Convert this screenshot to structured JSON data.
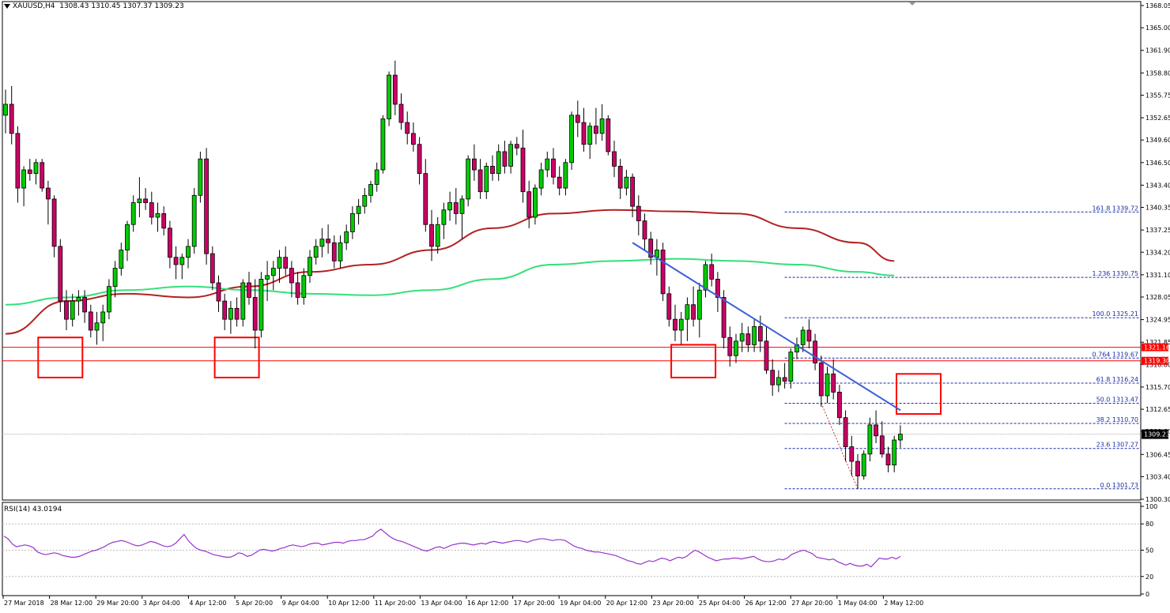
{
  "header": {
    "symbol": "XAUUSD,H4",
    "ohlc": "1308.43 1310.45 1307.37 1309.23"
  },
  "rsi": {
    "title": "RSI(14) 43.0194",
    "levels": [
      "100",
      "80",
      "50",
      "20",
      "0"
    ],
    "values": [
      66,
      63,
      57,
      54,
      55,
      56,
      55,
      53,
      48,
      46,
      45,
      46,
      47,
      46,
      44,
      43,
      42,
      42,
      43,
      45,
      47,
      49,
      50,
      52,
      54,
      57,
      59,
      60,
      61,
      60,
      58,
      56,
      55,
      56,
      58,
      60,
      59,
      57,
      55,
      54,
      55,
      58,
      63,
      68,
      61,
      56,
      52,
      50,
      49,
      47,
      45,
      44,
      43,
      42,
      42,
      44,
      47,
      46,
      43,
      44,
      47,
      50,
      51,
      50,
      49,
      50,
      52,
      53,
      55,
      56,
      55,
      54,
      55,
      57,
      58,
      58,
      56,
      57,
      58,
      59,
      59,
      58,
      60,
      61,
      61,
      62,
      62,
      64,
      66,
      71,
      74,
      70,
      66,
      63,
      61,
      60,
      58,
      56,
      54,
      52,
      50,
      49,
      51,
      53,
      54,
      52,
      54,
      56,
      57,
      58,
      58,
      57,
      56,
      57,
      58,
      57,
      59,
      60,
      59,
      58,
      59,
      60,
      61,
      61,
      60,
      59,
      61,
      62,
      63,
      63,
      62,
      61,
      62,
      62,
      61,
      58,
      55,
      53,
      52,
      50,
      49,
      48,
      48,
      47,
      46,
      45,
      44,
      42,
      40,
      38,
      37,
      35,
      34,
      36,
      38,
      37,
      39,
      41,
      40,
      38,
      40,
      42,
      41,
      43,
      47,
      50,
      48,
      45,
      42,
      40,
      38,
      39,
      40,
      40,
      41,
      41,
      40,
      41,
      42,
      43,
      40,
      38,
      37,
      37,
      38,
      40,
      39,
      41,
      45,
      47,
      49,
      50,
      48,
      46,
      42,
      41,
      40,
      39,
      40,
      37,
      35,
      33,
      35,
      33,
      32,
      32,
      34,
      31,
      36,
      41,
      40,
      40,
      42,
      40,
      43
    ],
    "current": "43.0194"
  },
  "price_axis": {
    "labels": [
      "1368.05",
      "1365.00",
      "1361.90",
      "1358.80",
      "1355.75",
      "1352.65",
      "1349.60",
      "1346.50",
      "1343.40",
      "1340.35",
      "1337.25",
      "1334.20",
      "1331.10",
      "1328.05",
      "1324.95",
      "1321.85",
      "1318.80",
      "1315.70",
      "1312.65",
      "1309.60",
      "1306.45",
      "1303.40",
      "1300.30"
    ],
    "current_price": "1309.23",
    "resistance_upper": "1321.16",
    "resistance_lower": "1319.30"
  },
  "fibonacci": {
    "levels": [
      {
        "label": "161.8 1339.72",
        "price": 1339.72
      },
      {
        "label": "1.236 1330.75",
        "price": 1330.75
      },
      {
        "label": "100.0 1325.21",
        "price": 1325.21
      },
      {
        "label": "0.764 1319.67",
        "price": 1319.67
      },
      {
        "label": "61.8 1316.24",
        "price": 1316.24
      },
      {
        "label": "50.0 1313.47",
        "price": 1313.47
      },
      {
        "label": "38.2 1310.70",
        "price": 1310.7
      },
      {
        "label": "23.6 1307.27",
        "price": 1307.27
      },
      {
        "label": "0.0 1301.73",
        "price": 1301.73
      }
    ]
  },
  "time_axis": {
    "labels": [
      "27 Mar 2018",
      "28 Mar 12:00",
      "29 Mar 20:00",
      "3 Apr 04:00",
      "4 Apr 12:00",
      "5 Apr 20:00",
      "9 Apr 04:00",
      "10 Apr 12:00",
      "11 Apr 20:00",
      "13 Apr 04:00",
      "16 Apr 12:00",
      "17 Apr 20:00",
      "19 Apr 04:00",
      "20 Apr 12:00",
      "23 Apr 20:00",
      "25 Apr 04:00",
      "26 Apr 12:00",
      "27 Apr 20:00",
      "1 May 04:00",
      "2 May 12:00"
    ]
  },
  "colors": {
    "bull": "#00cc00",
    "bear": "#cc0066",
    "ma_slow": "#b22222",
    "ma_fast": "#33e07a",
    "trendline": "#3a5fd8",
    "fib": "#1a2ea8",
    "resistance": "#ff0000"
  },
  "chart_data": {
    "type": "candlestick",
    "symbol": "XAUUSD",
    "timeframe": "H4",
    "ylim": [
      1300.3,
      1368.05
    ],
    "candles_ohlc": [
      [
        1353.0,
        1356.5,
        1350.5,
        1354.5
      ],
      [
        1354.5,
        1357.0,
        1349.0,
        1350.5
      ],
      [
        1350.5,
        1351.5,
        1341.0,
        1343.0
      ],
      [
        1343.0,
        1346.0,
        1340.5,
        1345.5
      ],
      [
        1345.5,
        1347.0,
        1344.0,
        1345.0
      ],
      [
        1345.0,
        1347.0,
        1343.5,
        1346.5
      ],
      [
        1346.5,
        1347.0,
        1342.5,
        1343.0
      ],
      [
        1343.0,
        1344.0,
        1338.0,
        1341.5
      ],
      [
        1341.5,
        1342.0,
        1333.5,
        1335.0
      ],
      [
        1335.0,
        1336.0,
        1326.0,
        1327.5
      ],
      [
        1327.5,
        1329.0,
        1323.5,
        1325.0
      ],
      [
        1325.0,
        1328.5,
        1324.0,
        1327.5
      ],
      [
        1327.5,
        1329.0,
        1325.5,
        1328.0
      ],
      [
        1328.0,
        1329.0,
        1324.5,
        1326.0
      ],
      [
        1326.0,
        1327.0,
        1322.5,
        1323.5
      ],
      [
        1323.5,
        1326.0,
        1321.5,
        1324.5
      ],
      [
        1324.5,
        1327.0,
        1322.0,
        1326.0
      ],
      [
        1326.0,
        1330.5,
        1325.0,
        1329.5
      ],
      [
        1329.5,
        1333.0,
        1328.0,
        1332.0
      ],
      [
        1332.0,
        1335.5,
        1331.0,
        1334.5
      ],
      [
        1334.5,
        1338.5,
        1333.0,
        1338.0
      ],
      [
        1338.0,
        1342.0,
        1337.0,
        1341.0
      ],
      [
        1341.0,
        1344.5,
        1339.0,
        1341.5
      ],
      [
        1341.5,
        1343.0,
        1340.0,
        1341.0
      ],
      [
        1341.0,
        1342.5,
        1338.0,
        1339.0
      ],
      [
        1339.0,
        1341.0,
        1337.0,
        1339.5
      ],
      [
        1339.5,
        1340.5,
        1336.5,
        1337.5
      ],
      [
        1337.5,
        1338.5,
        1332.0,
        1333.5
      ],
      [
        1333.5,
        1335.0,
        1330.5,
        1332.5
      ],
      [
        1332.5,
        1334.0,
        1330.5,
        1333.5
      ],
      [
        1333.5,
        1336.0,
        1332.0,
        1335.0
      ],
      [
        1335.0,
        1343.0,
        1334.0,
        1342.0
      ],
      [
        1342.0,
        1348.0,
        1341.0,
        1347.0
      ],
      [
        1347.0,
        1348.5,
        1332.5,
        1334.0
      ],
      [
        1334.0,
        1335.0,
        1329.0,
        1330.0
      ],
      [
        1330.0,
        1331.0,
        1326.0,
        1327.5
      ],
      [
        1327.5,
        1328.5,
        1323.5,
        1325.0
      ],
      [
        1325.0,
        1327.5,
        1323.0,
        1326.5
      ],
      [
        1326.5,
        1328.0,
        1324.0,
        1325.0
      ],
      [
        1325.0,
        1330.5,
        1324.0,
        1330.0
      ],
      [
        1330.0,
        1331.5,
        1327.0,
        1328.0
      ],
      [
        1328.0,
        1330.5,
        1321.0,
        1323.5
      ],
      [
        1323.5,
        1331.5,
        1322.5,
        1330.5
      ],
      [
        1330.5,
        1333.0,
        1327.5,
        1331.0
      ],
      [
        1331.0,
        1333.0,
        1329.0,
        1332.0
      ],
      [
        1332.0,
        1334.5,
        1330.0,
        1333.5
      ],
      [
        1333.5,
        1335.0,
        1331.0,
        1332.0
      ],
      [
        1332.0,
        1333.0,
        1328.0,
        1330.0
      ],
      [
        1330.0,
        1331.5,
        1327.0,
        1328.0
      ],
      [
        1328.0,
        1332.0,
        1327.0,
        1331.0
      ],
      [
        1331.0,
        1334.5,
        1330.0,
        1333.5
      ],
      [
        1333.5,
        1336.0,
        1332.5,
        1335.0
      ],
      [
        1335.0,
        1337.5,
        1333.5,
        1336.0
      ],
      [
        1336.0,
        1338.0,
        1334.0,
        1335.5
      ],
      [
        1335.5,
        1336.5,
        1332.0,
        1333.0
      ],
      [
        1333.0,
        1336.5,
        1332.0,
        1335.5
      ],
      [
        1335.5,
        1338.0,
        1334.5,
        1337.0
      ],
      [
        1337.0,
        1340.5,
        1336.0,
        1339.5
      ],
      [
        1339.5,
        1341.5,
        1338.0,
        1340.5
      ],
      [
        1340.5,
        1343.0,
        1339.5,
        1342.0
      ],
      [
        1342.0,
        1344.0,
        1341.0,
        1343.5
      ],
      [
        1343.5,
        1346.5,
        1342.5,
        1345.5
      ],
      [
        1345.5,
        1353.0,
        1345.0,
        1352.5
      ],
      [
        1352.5,
        1359.0,
        1351.5,
        1358.5
      ],
      [
        1358.5,
        1360.5,
        1353.0,
        1354.5
      ],
      [
        1354.5,
        1356.0,
        1351.0,
        1352.0
      ],
      [
        1352.0,
        1353.5,
        1349.0,
        1350.5
      ],
      [
        1350.5,
        1352.0,
        1348.0,
        1349.0
      ],
      [
        1349.0,
        1350.0,
        1343.5,
        1345.0
      ],
      [
        1345.0,
        1347.0,
        1337.0,
        1338.0
      ],
      [
        1338.0,
        1340.0,
        1333.0,
        1335.0
      ],
      [
        1335.0,
        1339.0,
        1334.0,
        1338.0
      ],
      [
        1338.0,
        1341.0,
        1336.0,
        1340.0
      ],
      [
        1340.0,
        1342.5,
        1338.5,
        1341.0
      ],
      [
        1341.0,
        1343.0,
        1338.0,
        1339.5
      ],
      [
        1339.5,
        1342.0,
        1336.0,
        1341.5
      ],
      [
        1341.5,
        1347.5,
        1340.5,
        1347.0
      ],
      [
        1347.0,
        1349.0,
        1344.0,
        1345.5
      ],
      [
        1345.5,
        1347.0,
        1341.5,
        1342.5
      ],
      [
        1342.5,
        1346.5,
        1341.5,
        1346.0
      ],
      [
        1346.0,
        1347.5,
        1344.0,
        1345.0
      ],
      [
        1345.0,
        1349.0,
        1344.0,
        1348.0
      ],
      [
        1348.0,
        1349.5,
        1345.0,
        1346.0
      ],
      [
        1346.0,
        1349.5,
        1345.0,
        1349.0
      ],
      [
        1349.0,
        1350.0,
        1347.5,
        1348.5
      ],
      [
        1348.5,
        1351.0,
        1341.0,
        1342.5
      ],
      [
        1342.5,
        1344.0,
        1337.5,
        1339.0
      ],
      [
        1339.0,
        1343.5,
        1338.0,
        1343.0
      ],
      [
        1343.0,
        1346.5,
        1342.0,
        1345.5
      ],
      [
        1345.5,
        1348.0,
        1344.5,
        1347.0
      ],
      [
        1347.0,
        1348.5,
        1343.5,
        1344.5
      ],
      [
        1344.5,
        1346.0,
        1342.0,
        1343.0
      ],
      [
        1343.0,
        1347.0,
        1342.0,
        1346.5
      ],
      [
        1346.5,
        1353.5,
        1345.5,
        1353.0
      ],
      [
        1353.0,
        1355.0,
        1350.0,
        1352.0
      ],
      [
        1352.0,
        1354.0,
        1348.0,
        1349.0
      ],
      [
        1349.0,
        1352.0,
        1347.0,
        1351.5
      ],
      [
        1351.5,
        1354.0,
        1349.0,
        1350.5
      ],
      [
        1350.5,
        1354.5,
        1349.5,
        1352.5
      ],
      [
        1352.5,
        1353.0,
        1347.5,
        1348.0
      ],
      [
        1348.0,
        1349.5,
        1344.5,
        1346.0
      ],
      [
        1346.0,
        1347.0,
        1341.5,
        1343.0
      ],
      [
        1343.0,
        1345.5,
        1342.0,
        1344.5
      ],
      [
        1344.5,
        1345.0,
        1339.0,
        1340.5
      ],
      [
        1340.5,
        1342.0,
        1336.5,
        1338.5
      ],
      [
        1338.5,
        1339.5,
        1334.5,
        1336.0
      ],
      [
        1336.0,
        1337.0,
        1332.5,
        1333.5
      ],
      [
        1333.5,
        1336.0,
        1331.0,
        1334.5
      ],
      [
        1334.5,
        1335.5,
        1327.5,
        1328.5
      ],
      [
        1328.5,
        1329.5,
        1324.0,
        1325.0
      ],
      [
        1325.0,
        1327.0,
        1322.0,
        1323.5
      ],
      [
        1323.5,
        1326.0,
        1321.5,
        1325.0
      ],
      [
        1325.0,
        1328.0,
        1322.0,
        1327.0
      ],
      [
        1327.0,
        1329.5,
        1324.0,
        1325.0
      ],
      [
        1325.0,
        1330.0,
        1322.5,
        1329.0
      ],
      [
        1329.0,
        1333.0,
        1328.0,
        1332.5
      ],
      [
        1332.5,
        1334.0,
        1329.5,
        1330.5
      ],
      [
        1330.5,
        1331.5,
        1326.0,
        1328.0
      ],
      [
        1328.0,
        1329.0,
        1321.0,
        1322.5
      ],
      [
        1322.5,
        1324.0,
        1318.5,
        1320.0
      ],
      [
        1320.0,
        1323.0,
        1319.0,
        1322.0
      ],
      [
        1322.0,
        1324.5,
        1320.5,
        1323.0
      ],
      [
        1323.0,
        1324.0,
        1320.5,
        1321.5
      ],
      [
        1321.5,
        1325.0,
        1320.5,
        1324.0
      ],
      [
        1324.0,
        1325.5,
        1320.5,
        1322.0
      ],
      [
        1322.0,
        1324.0,
        1317.5,
        1318.0
      ],
      [
        1318.0,
        1319.5,
        1314.5,
        1316.0
      ],
      [
        1316.0,
        1318.0,
        1315.0,
        1317.0
      ],
      [
        1317.0,
        1319.0,
        1315.5,
        1316.5
      ],
      [
        1316.5,
        1321.0,
        1315.5,
        1320.5
      ],
      [
        1320.5,
        1322.5,
        1319.5,
        1321.5
      ],
      [
        1321.5,
        1324.0,
        1320.5,
        1323.5
      ],
      [
        1323.5,
        1325.0,
        1321.0,
        1322.0
      ],
      [
        1322.0,
        1323.0,
        1318.0,
        1319.0
      ],
      [
        1319.0,
        1320.0,
        1313.0,
        1314.5
      ],
      [
        1314.5,
        1318.5,
        1313.5,
        1317.5
      ],
      [
        1317.5,
        1319.5,
        1314.0,
        1315.0
      ],
      [
        1315.0,
        1316.0,
        1310.5,
        1311.5
      ],
      [
        1311.5,
        1312.5,
        1305.5,
        1307.5
      ],
      [
        1307.5,
        1309.0,
        1303.5,
        1305.5
      ],
      [
        1305.5,
        1306.5,
        1301.7,
        1303.5
      ],
      [
        1303.5,
        1307.0,
        1303.0,
        1306.5
      ],
      [
        1306.5,
        1311.5,
        1305.5,
        1310.5
      ],
      [
        1310.5,
        1312.5,
        1308.0,
        1309.0
      ],
      [
        1309.0,
        1311.0,
        1306.0,
        1306.5
      ],
      [
        1306.5,
        1307.5,
        1304.0,
        1305.0
      ],
      [
        1305.0,
        1309.0,
        1304.0,
        1308.43
      ],
      [
        1308.43,
        1310.45,
        1307.37,
        1309.23
      ]
    ],
    "moving_averages": [
      {
        "name": "slow",
        "points": [
          [
            0,
            1323.0
          ],
          [
            10,
            1327.5
          ],
          [
            20,
            1328.5
          ],
          [
            30,
            1328.0
          ],
          [
            40,
            1329.5
          ],
          [
            50,
            1331.5
          ],
          [
            60,
            1332.5
          ],
          [
            70,
            1334.5
          ],
          [
            80,
            1337.5
          ],
          [
            90,
            1339.5
          ],
          [
            100,
            1340.0
          ],
          [
            110,
            1339.8
          ],
          [
            120,
            1339.5
          ],
          [
            130,
            1337.5
          ],
          [
            140,
            1335.5
          ],
          [
            146,
            1333.0
          ]
        ]
      },
      {
        "name": "fast",
        "points": [
          [
            0,
            1327.0
          ],
          [
            10,
            1328.0
          ],
          [
            20,
            1329.0
          ],
          [
            30,
            1329.5
          ],
          [
            40,
            1329.0
          ],
          [
            50,
            1328.5
          ],
          [
            60,
            1328.3
          ],
          [
            70,
            1329.0
          ],
          [
            80,
            1330.5
          ],
          [
            90,
            1332.5
          ],
          [
            100,
            1333.0
          ],
          [
            110,
            1333.3
          ],
          [
            120,
            1333.0
          ],
          [
            130,
            1332.5
          ],
          [
            140,
            1331.5
          ],
          [
            146,
            1331.0
          ]
        ]
      }
    ],
    "trendline": {
      "start": [
        103,
        1335.5
      ],
      "end": [
        146,
        1312.5
      ]
    },
    "resistance_levels": [
      1321.16,
      1319.3
    ],
    "xlabel": "",
    "ylabel": "",
    "grid": false
  }
}
